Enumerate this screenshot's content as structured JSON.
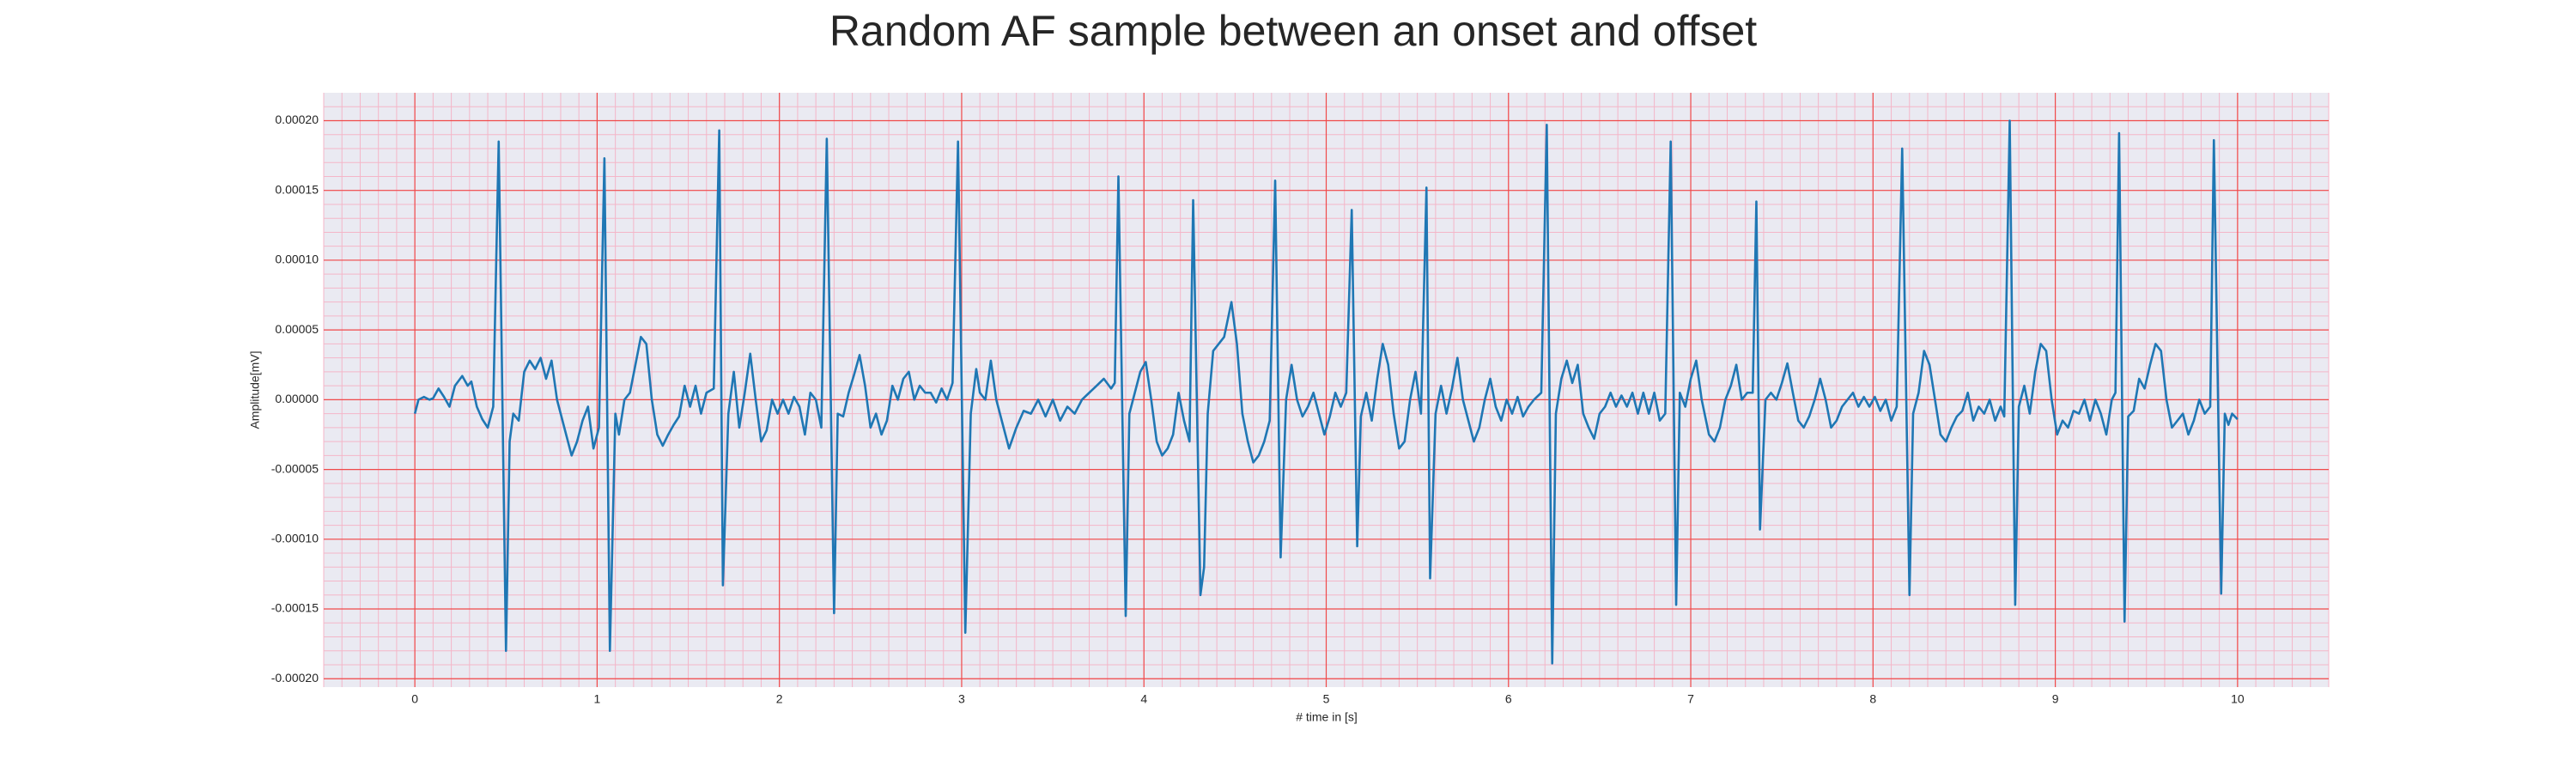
{
  "chart_data": {
    "type": "line",
    "title": "Random AF sample between an onset and offset",
    "xlabel": "# time in [s]",
    "ylabel": "Amplitude[mV]",
    "color": "#1f77b4",
    "grid": true,
    "xlim": [
      -0.5,
      10.5
    ],
    "ylim": [
      -0.000206,
      0.00022
    ],
    "xticks": [
      0,
      1,
      2,
      3,
      4,
      5,
      6,
      7,
      8,
      9,
      10
    ],
    "yticks": [
      {
        "value": -0.0002,
        "label": "-0.00020"
      },
      {
        "value": -0.00015,
        "label": "-0.00015"
      },
      {
        "value": -0.0001,
        "label": "-0.00010"
      },
      {
        "value": -5e-05,
        "label": "-0.00005"
      },
      {
        "value": 0,
        "label": "0.00000"
      },
      {
        "value": 5e-05,
        "label": "0.00005"
      },
      {
        "value": 0.0001,
        "label": "0.00010"
      },
      {
        "value": 0.00015,
        "label": "0.00015"
      },
      {
        "value": 0.0002,
        "label": "0.00020"
      }
    ],
    "x": [
      0,
      0.02,
      0.05,
      0.08,
      0.1,
      0.13,
      0.16,
      0.19,
      0.22,
      0.26,
      0.29,
      0.31,
      0.34,
      0.37,
      0.4,
      0.43,
      0.46,
      0.5,
      0.52,
      0.54,
      0.57,
      0.6,
      0.63,
      0.66,
      0.69,
      0.72,
      0.75,
      0.78,
      0.82,
      0.86,
      0.89,
      0.92,
      0.95,
      0.98,
      1.01,
      1.04,
      1.07,
      1.1,
      1.12,
      1.15,
      1.18,
      1.21,
      1.24,
      1.27,
      1.3,
      1.33,
      1.36,
      1.39,
      1.42,
      1.45,
      1.48,
      1.51,
      1.54,
      1.57,
      1.6,
      1.64,
      1.67,
      1.69,
      1.72,
      1.75,
      1.78,
      1.81,
      1.84,
      1.87,
      1.9,
      1.93,
      1.96,
      1.99,
      2.02,
      2.05,
      2.08,
      2.11,
      2.14,
      2.17,
      2.2,
      2.23,
      2.26,
      2.3,
      2.32,
      2.35,
      2.38,
      2.41,
      2.44,
      2.47,
      2.5,
      2.53,
      2.56,
      2.59,
      2.62,
      2.65,
      2.68,
      2.71,
      2.74,
      2.77,
      2.8,
      2.83,
      2.86,
      2.89,
      2.92,
      2.95,
      2.98,
      3.02,
      3.05,
      3.08,
      3.1,
      3.13,
      3.16,
      3.19,
      3.22,
      3.26,
      3.3,
      3.34,
      3.38,
      3.42,
      3.46,
      3.5,
      3.54,
      3.58,
      3.62,
      3.66,
      3.7,
      3.74,
      3.78,
      3.82,
      3.84,
      3.86,
      3.9,
      3.92,
      3.95,
      3.98,
      4.01,
      4.04,
      4.07,
      4.1,
      4.13,
      4.16,
      4.19,
      4.22,
      4.25,
      4.27,
      4.31,
      4.33,
      4.35,
      4.38,
      4.41,
      4.44,
      4.48,
      4.51,
      4.54,
      4.57,
      4.6,
      4.63,
      4.66,
      4.69,
      4.72,
      4.75,
      4.78,
      4.81,
      4.84,
      4.87,
      4.9,
      4.93,
      4.96,
      4.99,
      5.02,
      5.05,
      5.08,
      5.11,
      5.14,
      5.17,
      5.19,
      5.22,
      5.25,
      5.28,
      5.31,
      5.34,
      5.37,
      5.4,
      5.43,
      5.46,
      5.49,
      5.52,
      5.55,
      5.57,
      5.6,
      5.63,
      5.66,
      5.69,
      5.72,
      5.75,
      5.78,
      5.81,
      5.84,
      5.87,
      5.9,
      5.93,
      5.96,
      5.99,
      6.02,
      6.05,
      6.08,
      6.11,
      6.14,
      6.18,
      6.21,
      6.24,
      6.26,
      6.29,
      6.32,
      6.35,
      6.38,
      6.41,
      6.44,
      6.47,
      6.5,
      6.53,
      6.56,
      6.59,
      6.62,
      6.65,
      6.68,
      6.71,
      6.74,
      6.77,
      6.8,
      6.83,
      6.86,
      6.89,
      6.92,
      6.94,
      6.97,
      7.0,
      7.03,
      7.06,
      7.1,
      7.13,
      7.16,
      7.19,
      7.22,
      7.25,
      7.28,
      7.31,
      7.34,
      7.36,
      7.38,
      7.41,
      7.44,
      7.47,
      7.5,
      7.53,
      7.56,
      7.59,
      7.62,
      7.65,
      7.68,
      7.71,
      7.74,
      7.77,
      7.8,
      7.83,
      7.86,
      7.89,
      7.92,
      7.95,
      7.98,
      8.01,
      8.04,
      8.07,
      8.1,
      8.13,
      8.16,
      8.2,
      8.22,
      8.25,
      8.28,
      8.31,
      8.34,
      8.37,
      8.4,
      8.43,
      8.46,
      8.49,
      8.52,
      8.55,
      8.58,
      8.61,
      8.64,
      8.67,
      8.7,
      8.72,
      8.75,
      8.78,
      8.8,
      8.83,
      8.86,
      8.89,
      8.92,
      8.95,
      8.98,
      9.01,
      9.04,
      9.07,
      9.1,
      9.13,
      9.16,
      9.19,
      9.22,
      9.25,
      9.28,
      9.31,
      9.33,
      9.35,
      9.38,
      9.4,
      9.43,
      9.46,
      9.49,
      9.52,
      9.55,
      9.58,
      9.61,
      9.64,
      9.67,
      9.7,
      9.73,
      9.76,
      9.79,
      9.82,
      9.85,
      9.87,
      9.91,
      9.93,
      9.95,
      9.97,
      10.0
    ],
    "values": [
      -1e-05,
      0,
      2e-06,
      0,
      1e-06,
      8e-06,
      2e-06,
      -5e-06,
      1e-05,
      1.7e-05,
      1e-05,
      1.3e-05,
      -5e-06,
      -1.4e-05,
      -2e-05,
      -5e-06,
      0.000185,
      -0.00018,
      -3e-05,
      -1e-05,
      -1.5e-05,
      2e-05,
      2.8e-05,
      2.2e-05,
      3e-05,
      1.5e-05,
      2.8e-05,
      0,
      -2e-05,
      -4e-05,
      -3e-05,
      -1.5e-05,
      -5e-06,
      -3.5e-05,
      -2e-05,
      0.000173,
      -0.00018,
      -1e-05,
      -2.5e-05,
      0,
      5e-06,
      2.5e-05,
      4.5e-05,
      4e-05,
      0,
      -2.5e-05,
      -3.3e-05,
      -2.5e-05,
      -1.8e-05,
      -1.2e-05,
      1e-05,
      -5e-06,
      1e-05,
      -1e-05,
      5e-06,
      8e-06,
      0.000193,
      -0.000133,
      -1e-05,
      2e-05,
      -2e-05,
      5e-06,
      3.3e-05,
      0,
      -3e-05,
      -2.2e-05,
      0,
      -1e-05,
      0,
      -1e-05,
      2e-06,
      -5e-06,
      -2.5e-05,
      5e-06,
      0,
      -2e-05,
      0.000187,
      -0.000153,
      -1e-05,
      -1.2e-05,
      5e-06,
      1.8e-05,
      3.2e-05,
      1e-05,
      -2e-05,
      -1e-05,
      -2.5e-05,
      -1.5e-05,
      1e-05,
      0,
      1.5e-05,
      2e-05,
      0,
      1e-05,
      5e-06,
      5e-06,
      -2e-06,
      8e-06,
      0,
      1.2e-05,
      0.000185,
      -0.000167,
      -1e-05,
      2.2e-05,
      5e-06,
      0,
      2.8e-05,
      0,
      -1.5e-05,
      -3.5e-05,
      -2e-05,
      -8e-06,
      -1e-05,
      0,
      -1.2e-05,
      0,
      -1.5e-05,
      -5e-06,
      -1e-05,
      0,
      5e-06,
      1e-05,
      1.5e-05,
      8e-06,
      1.2e-05,
      0.00016,
      -0.000155,
      -1e-05,
      5e-06,
      2e-05,
      2.7e-05,
      0,
      -3e-05,
      -4e-05,
      -3.5e-05,
      -2.5e-05,
      5e-06,
      -1.5e-05,
      -3e-05,
      0.000143,
      -0.00014,
      -0.00012,
      -1e-05,
      3.5e-05,
      4e-05,
      4.5e-05,
      7e-05,
      4e-05,
      -1e-05,
      -3e-05,
      -4.5e-05,
      -4e-05,
      -3e-05,
      -1.5e-05,
      0.000157,
      -0.000113,
      0,
      2.5e-05,
      0,
      -1.2e-05,
      -5e-06,
      5e-06,
      -1e-05,
      -2.5e-05,
      -1.2e-05,
      5e-06,
      -5e-06,
      5e-06,
      0.000136,
      -0.000105,
      -1.2e-05,
      5e-06,
      -1.5e-05,
      1.5e-05,
      4e-05,
      2.5e-05,
      -1e-05,
      -3.5e-05,
      -3e-05,
      0,
      2e-05,
      -1e-05,
      0.000152,
      -0.000128,
      -1e-05,
      1e-05,
      -1e-05,
      8e-06,
      3e-05,
      0,
      -1.5e-05,
      -3e-05,
      -2e-05,
      0,
      1.5e-05,
      -5e-06,
      -1.5e-05,
      0,
      -1e-05,
      2e-06,
      -1.2e-05,
      -5e-06,
      0,
      5e-06,
      0.000197,
      -0.000189,
      -1e-05,
      1.5e-05,
      2.8e-05,
      1.2e-05,
      2.5e-05,
      -1e-05,
      -2e-05,
      -2.8e-05,
      -1e-05,
      -5e-06,
      5e-06,
      -5e-06,
      3e-06,
      -5e-06,
      5e-06,
      -1e-05,
      5e-06,
      -1e-05,
      5e-06,
      -1.5e-05,
      -1e-05,
      0.000185,
      -0.000147,
      5e-06,
      -5e-06,
      1.5e-05,
      2.8e-05,
      0,
      -2.5e-05,
      -3e-05,
      -2e-05,
      0,
      1e-05,
      2.5e-05,
      0,
      5e-06,
      5e-06,
      0.000142,
      -9.3e-05,
      0,
      5e-06,
      0,
      1.2e-05,
      2.6e-05,
      5e-06,
      -1.5e-05,
      -2e-05,
      -1.2e-05,
      0,
      1.5e-05,
      0,
      -2e-05,
      -1.5e-05,
      -5e-06,
      0,
      5e-06,
      -5e-06,
      2e-06,
      -5e-06,
      2e-06,
      -8e-06,
      0,
      -1.5e-05,
      -5e-06,
      0.00018,
      -0.00014,
      -1e-05,
      5e-06,
      3.5e-05,
      2.5e-05,
      0,
      -2.5e-05,
      -3e-05,
      -2e-05,
      -1.2e-05,
      -8e-06,
      5e-06,
      -1.5e-05,
      -5e-06,
      -1e-05,
      0,
      -1.5e-05,
      -5e-06,
      -1.2e-05,
      0.0002,
      -0.000147,
      -5e-06,
      1e-05,
      -1e-05,
      2e-05,
      4e-05,
      3.5e-05,
      0,
      -2.5e-05,
      -1.5e-05,
      -2e-05,
      -8e-06,
      -1e-05,
      0,
      -1.5e-05,
      0,
      -1e-05,
      -2.5e-05,
      0,
      5e-06,
      0.000191,
      -0.000159,
      -1.2e-05,
      -8e-06,
      1.5e-05,
      8e-06,
      2.5e-05,
      4e-05,
      3.5e-05,
      0,
      -2e-05,
      -1.5e-05,
      -1e-05,
      -2.5e-05,
      -1.5e-05,
      0,
      -1e-05,
      -5e-06,
      0.000186,
      -0.000139,
      -1e-05,
      -1.8e-05,
      -1e-05,
      -1.4e-05
    ]
  }
}
